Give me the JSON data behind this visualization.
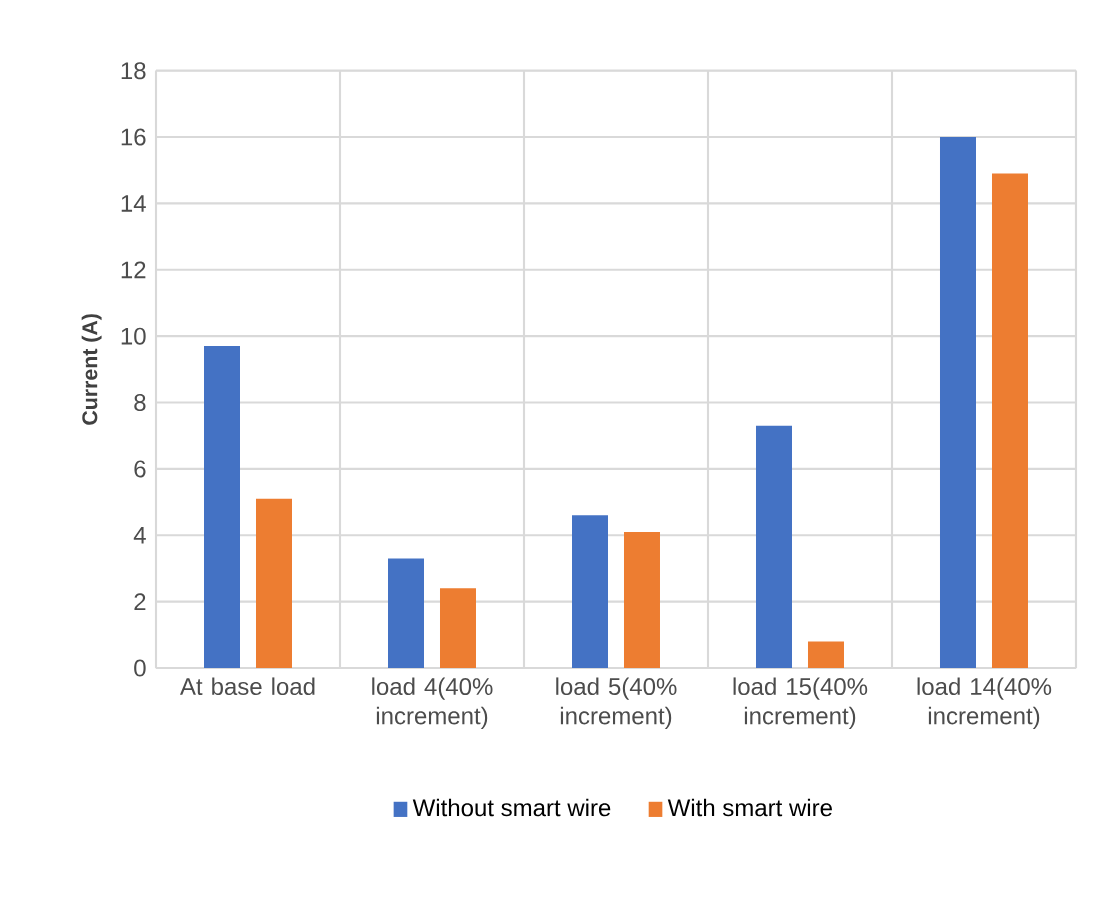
{
  "chart_data": {
    "type": "bar",
    "ylabel": "**Current (A)**",
    "categories": [
      "At base load",
      "load 4(40% increment)",
      "load 5(40% increment)",
      "load 15(40% increment)",
      "load 14(40% increment)"
    ],
    "series": [
      {
        "name": "Without smart wire",
        "color": "#4472c4",
        "values": [
          9.7,
          3.3,
          4.6,
          7.3,
          16.0
        ]
      },
      {
        "name": "With smart wire",
        "color": "#ed7d31",
        "values": [
          5.1,
          2.4,
          4.1,
          0.8,
          14.9
        ]
      }
    ],
    "ylim": [
      0,
      18
    ],
    "yticks": [
      0,
      2,
      4,
      6,
      8,
      10,
      12,
      14,
      16,
      18
    ],
    "grid": true,
    "legend": "bottom"
  }
}
